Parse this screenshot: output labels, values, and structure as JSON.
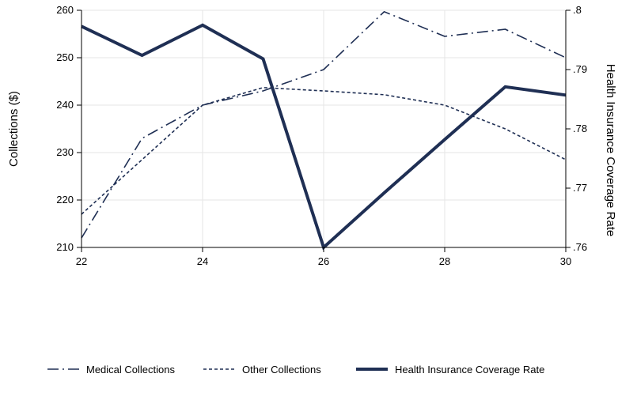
{
  "chart_data": {
    "type": "line",
    "x": [
      22,
      23,
      24,
      25,
      26,
      27,
      28,
      29,
      30
    ],
    "xlim": [
      22,
      30
    ],
    "xticks": [
      "22",
      "24",
      "26",
      "28",
      "30"
    ],
    "ylabel_left": "Collections ($)",
    "ylim_left": [
      210,
      260
    ],
    "yticks_left": [
      "210",
      "220",
      "230",
      "240",
      "250",
      "260"
    ],
    "ylabel_right": "Health Insurance Coverage Rate",
    "ylim_right": [
      0.76,
      0.8
    ],
    "yticks_right": [
      ".76",
      ".77",
      ".78",
      ".79",
      ".8"
    ],
    "grid": true,
    "legend_position": "bottom",
    "series": [
      {
        "name": "Medical Collections",
        "axis": "left",
        "style": "dash-dot",
        "color": "#1f2f54",
        "values": [
          212,
          233,
          240,
          243,
          247.5,
          259.7,
          254.5,
          256,
          250
        ]
      },
      {
        "name": "Other Collections",
        "axis": "left",
        "style": "dotted",
        "color": "#1f2f54",
        "values": [
          217,
          228.5,
          240,
          243.7,
          243,
          242.2,
          240,
          235,
          228.5
        ]
      },
      {
        "name": "Health Insurance Coverage Rate",
        "axis": "right",
        "style": "solid",
        "color": "#1f2f54",
        "values": [
          0.7973,
          0.7924,
          0.7975,
          0.7918,
          0.76,
          0.7692,
          0.7782,
          0.7871,
          0.7857
        ]
      }
    ]
  }
}
